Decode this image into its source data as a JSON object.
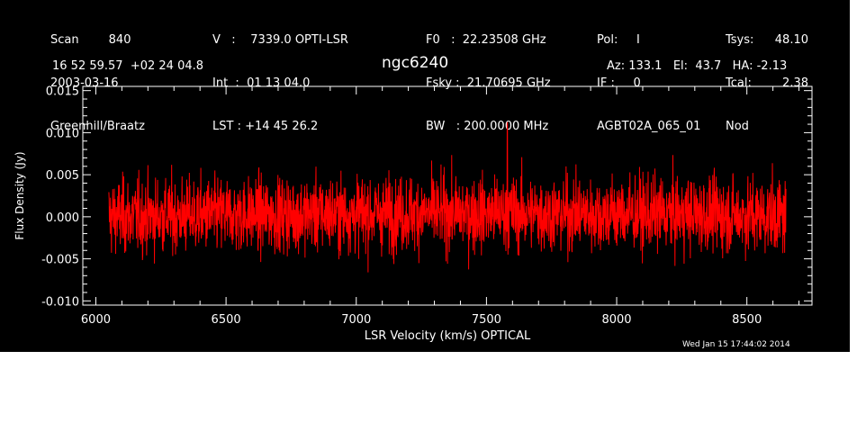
{
  "header": {
    "col1": [
      "Scan        840",
      "2003-03-16",
      "Greenhill/Braatz"
    ],
    "col2": [
      "V   :    7339.0 OPTI-LSR",
      "Int  :  01 13 04.0",
      "LST : +14 45 26.2"
    ],
    "col3": [
      "F0   :  22.23508 GHz",
      "Fsky :  21.70695 GHz",
      "BW   : 200.0000 MHz"
    ],
    "col4": [
      "Pol:     I",
      "IF :     0",
      "AGBT02A_065_01"
    ],
    "col5": [
      "Tsys:",
      "Tcal:",
      "Nod"
    ],
    "col6": [
      "48.10",
      "2.38",
      ""
    ],
    "coords": "16 52 59.57  +02 24 04.8",
    "source": "ngc6240",
    "azel": "Az: 133.1   El:  43.7   HA: -2.13",
    "timestamp": "Wed Jan 15 17:44:02 2014"
  },
  "chart_data": {
    "type": "line",
    "title": "ngc6240",
    "xlabel": "LSR Velocity (km/s) OPTICAL",
    "ylabel": "Flux Density (Jy)",
    "xlim": [
      5950,
      8750
    ],
    "ylim": [
      -0.0105,
      0.0155
    ],
    "xticks": [
      6000,
      6500,
      7000,
      7500,
      8000,
      8500
    ],
    "yticks": [
      -0.01,
      -0.005,
      0.0,
      0.005,
      0.01,
      0.015
    ],
    "ytick_labels": [
      "-0.010",
      "-0.005",
      "0.000",
      "0.005",
      "0.010",
      "0.015"
    ],
    "grid": false,
    "series": [
      {
        "color": "#ff0000",
        "x_start": 6050,
        "x_end": 8650,
        "n_points": 2600,
        "noise_rms": 0.0022,
        "baseline": 0.0,
        "y_min": -0.007,
        "y_max": 0.0112,
        "peak_x": 7580,
        "peak_y": 0.0112
      }
    ]
  }
}
